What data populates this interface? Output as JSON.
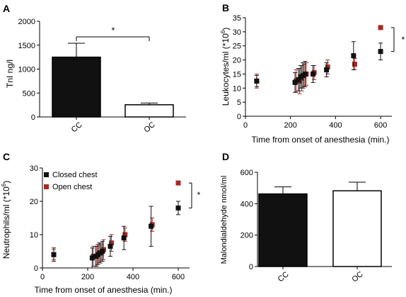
{
  "colors": {
    "closed": "#111111",
    "open": "#a52a25",
    "axis": "#000000",
    "white_bar": "#ffffff"
  },
  "chart_data": [
    {
      "panel": "A",
      "type": "bar",
      "ylabel": "TnI ng/l",
      "categories": [
        "CC",
        "OC"
      ],
      "values": [
        1250,
        255
      ],
      "errors": [
        290,
        35
      ],
      "bar_fill": [
        "#111111",
        "#ffffff"
      ],
      "ylim": [
        0,
        2000
      ],
      "yticks": [
        "0",
        "500",
        "1000",
        "1500",
        "2000"
      ],
      "significance": "*"
    },
    {
      "panel": "B",
      "type": "scatter",
      "xlabel": "Time from onset of anesthesia (min.)",
      "ylabel": "Leukocytes/ml (*10",
      "ylabel_sup": "6",
      "ylabel_end": ")",
      "xlim": [
        0,
        650
      ],
      "ylim": [
        0,
        35
      ],
      "xticks": [
        "0",
        "200",
        "400",
        "600"
      ],
      "yticks": [
        "0",
        "5",
        "10",
        "15",
        "20",
        "25",
        "30",
        "35"
      ],
      "significance": "*",
      "series": [
        {
          "key": "closed",
          "x": [
            50,
            220,
            235,
            245,
            255,
            265,
            300,
            360,
            480,
            600
          ],
          "y": [
            12.5,
            12.0,
            13.0,
            14.0,
            14.5,
            15.0,
            15.0,
            16.5,
            21.5,
            23.0
          ],
          "err": [
            2.0,
            3.5,
            4.0,
            4.0,
            4.5,
            4.5,
            3.0,
            2.5,
            5.0,
            3.0
          ]
        },
        {
          "key": "open",
          "x": [
            50,
            225,
            240,
            250,
            260,
            270,
            305,
            365,
            485,
            600
          ],
          "y": [
            12.5,
            12.5,
            12.5,
            13.5,
            14.5,
            15.0,
            15.5,
            17.5,
            18.5,
            31.5
          ],
          "err": [
            2.5,
            4.0,
            4.5,
            4.5,
            4.0,
            4.0,
            2.5,
            2.5,
            2.0,
            0
          ]
        }
      ]
    },
    {
      "panel": "C",
      "type": "scatter",
      "xlabel": "Time from onset of anesthesia (min.)",
      "ylabel": "Neutrophils/ml (*10",
      "ylabel_sup": "6",
      "ylabel_end": ")",
      "legend": [
        "Closed chest",
        "Open chest"
      ],
      "legend_placement": "top-left",
      "xlim": [
        0,
        650
      ],
      "ylim": [
        0,
        30
      ],
      "xticks": [
        "0",
        "200",
        "400",
        "600"
      ],
      "yticks": [
        "0",
        "10",
        "20",
        "30"
      ],
      "significance": "*",
      "series": [
        {
          "key": "closed",
          "x": [
            50,
            220,
            235,
            245,
            255,
            265,
            300,
            360,
            480,
            600
          ],
          "y": [
            4.0,
            3.0,
            3.5,
            4.0,
            4.5,
            5.0,
            6.5,
            9.0,
            12.5,
            18.0
          ],
          "err": [
            2.0,
            3.0,
            3.0,
            3.0,
            3.0,
            3.0,
            3.0,
            3.5,
            6.0,
            2.0
          ]
        },
        {
          "key": "open",
          "x": [
            50,
            225,
            240,
            250,
            260,
            270,
            305,
            365,
            485,
            600
          ],
          "y": [
            4.0,
            3.5,
            3.5,
            4.5,
            4.5,
            5.5,
            7.5,
            10.0,
            13.0,
            25.5
          ],
          "err": [
            1.5,
            3.0,
            3.0,
            3.0,
            2.5,
            3.0,
            2.5,
            2.0,
            2.0,
            0
          ]
        }
      ]
    },
    {
      "panel": "D",
      "type": "bar",
      "ylabel": "Malondialdehyde nmol/ml",
      "categories": [
        "CC",
        "OC"
      ],
      "values": [
        462,
        482
      ],
      "errors": [
        45,
        55
      ],
      "bar_fill": [
        "#111111",
        "#ffffff"
      ],
      "ylim": [
        0,
        600
      ],
      "yticks": [
        "0",
        "200",
        "400",
        "600"
      ]
    }
  ]
}
